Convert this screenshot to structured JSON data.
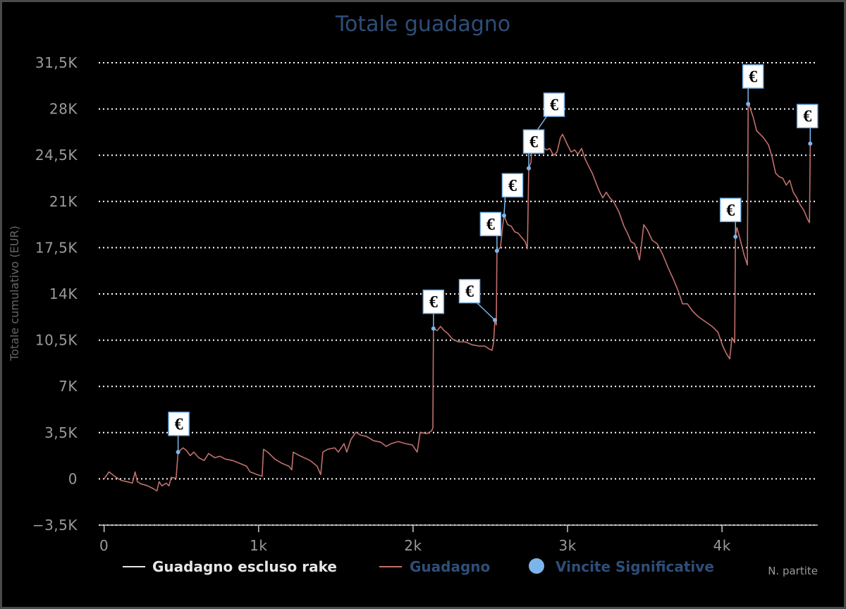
{
  "colors": {
    "background": "#000000",
    "title": "#2e4e79",
    "axis_text": "#9a9a9a",
    "axis_title": "#666666",
    "axis_line": "#c8c8c8",
    "grid": "#ffffff",
    "legend_text": "#2e4e79",
    "legend_text_inactive": "#e6e6e6"
  },
  "chart_data": {
    "type": "line",
    "title": "Totale guadagno",
    "xlabel": "N. partite",
    "ylabel": "Totale cumulativo (EUR)",
    "xlim": [
      -35,
      4620
    ],
    "ylim": [
      -3500,
      31500
    ],
    "grid": true,
    "legend": {
      "position": "bottom"
    },
    "xticks": [
      {
        "value": 0,
        "label": "0"
      },
      {
        "value": 1000,
        "label": "1k"
      },
      {
        "value": 2000,
        "label": "2k"
      },
      {
        "value": 3000,
        "label": "3k"
      },
      {
        "value": 4000,
        "label": "4k"
      }
    ],
    "yticks": [
      {
        "value": 31500,
        "label": "31,5K"
      },
      {
        "value": 28000,
        "label": "28K"
      },
      {
        "value": 24500,
        "label": "24,5K"
      },
      {
        "value": 21000,
        "label": "21K"
      },
      {
        "value": 17500,
        "label": "17,5K"
      },
      {
        "value": 14000,
        "label": "14K"
      },
      {
        "value": 10500,
        "label": "10,5K"
      },
      {
        "value": 7000,
        "label": "7K"
      },
      {
        "value": 3500,
        "label": "3,5K"
      },
      {
        "value": 0,
        "label": "0"
      },
      {
        "value": -3500,
        "label": "−3,5K"
      }
    ],
    "series": [
      {
        "name": "Guadagno escluso rake",
        "color": "#e6e6e6",
        "points": []
      },
      {
        "name": "Guadagno",
        "color": "#c0706c",
        "points": [
          [
            0,
            0
          ],
          [
            32,
            530
          ],
          [
            55,
            320
          ],
          [
            78,
            110
          ],
          [
            110,
            -110
          ],
          [
            146,
            -210
          ],
          [
            183,
            -320
          ],
          [
            201,
            530
          ],
          [
            215,
            -210
          ],
          [
            237,
            -370
          ],
          [
            283,
            -530
          ],
          [
            320,
            -750
          ],
          [
            342,
            -910
          ],
          [
            356,
            -210
          ],
          [
            374,
            -530
          ],
          [
            402,
            -320
          ],
          [
            420,
            -530
          ],
          [
            434,
            110
          ],
          [
            466,
            50
          ],
          [
            479,
            2030
          ],
          [
            511,
            2350
          ],
          [
            534,
            2140
          ],
          [
            557,
            1760
          ],
          [
            580,
            2030
          ],
          [
            612,
            1600
          ],
          [
            648,
            1390
          ],
          [
            676,
            1920
          ],
          [
            717,
            1600
          ],
          [
            749,
            1710
          ],
          [
            785,
            1500
          ],
          [
            831,
            1390
          ],
          [
            877,
            1180
          ],
          [
            922,
            960
          ],
          [
            945,
            530
          ],
          [
            968,
            430
          ],
          [
            991,
            320
          ],
          [
            1023,
            210
          ],
          [
            1032,
            2240
          ],
          [
            1059,
            2030
          ],
          [
            1105,
            1500
          ],
          [
            1151,
            1180
          ],
          [
            1196,
            960
          ],
          [
            1215,
            690
          ],
          [
            1224,
            2030
          ],
          [
            1265,
            1760
          ],
          [
            1333,
            1390
          ],
          [
            1379,
            960
          ],
          [
            1402,
            320
          ],
          [
            1416,
            2030
          ],
          [
            1447,
            2240
          ],
          [
            1493,
            2350
          ],
          [
            1516,
            2030
          ],
          [
            1553,
            2670
          ],
          [
            1571,
            2030
          ],
          [
            1598,
            2990
          ],
          [
            1630,
            3530
          ],
          [
            1662,
            3310
          ],
          [
            1699,
            3210
          ],
          [
            1744,
            2890
          ],
          [
            1790,
            2780
          ],
          [
            1826,
            2460
          ],
          [
            1858,
            2670
          ],
          [
            1904,
            2830
          ],
          [
            1950,
            2670
          ],
          [
            1995,
            2570
          ],
          [
            2027,
            2030
          ],
          [
            2046,
            3530
          ],
          [
            2087,
            3420
          ],
          [
            2119,
            3630
          ],
          [
            2128,
            3850
          ],
          [
            2132,
            11380
          ],
          [
            2155,
            11220
          ],
          [
            2178,
            11540
          ],
          [
            2201,
            11220
          ],
          [
            2224,
            11010
          ],
          [
            2256,
            10580
          ],
          [
            2292,
            10370
          ],
          [
            2338,
            10370
          ],
          [
            2384,
            10150
          ],
          [
            2429,
            10050
          ],
          [
            2466,
            10050
          ],
          [
            2493,
            9830
          ],
          [
            2511,
            9730
          ],
          [
            2521,
            10310
          ],
          [
            2530,
            12020
          ],
          [
            2539,
            11650
          ],
          [
            2543,
            17260
          ],
          [
            2566,
            17530
          ],
          [
            2580,
            19130
          ],
          [
            2589,
            19930
          ],
          [
            2612,
            19240
          ],
          [
            2635,
            19130
          ],
          [
            2658,
            18700
          ],
          [
            2680,
            18600
          ],
          [
            2703,
            18280
          ],
          [
            2726,
            17960
          ],
          [
            2740,
            17420
          ],
          [
            2749,
            23510
          ],
          [
            2763,
            23940
          ],
          [
            2776,
            25920
          ],
          [
            2795,
            25540
          ],
          [
            2817,
            25010
          ],
          [
            2840,
            25120
          ],
          [
            2863,
            24900
          ],
          [
            2886,
            25010
          ],
          [
            2909,
            24480
          ],
          [
            2932,
            24740
          ],
          [
            2954,
            25810
          ],
          [
            2968,
            26080
          ],
          [
            3000,
            25280
          ],
          [
            3023,
            24740
          ],
          [
            3046,
            24900
          ],
          [
            3068,
            24580
          ],
          [
            3091,
            25010
          ],
          [
            3114,
            24210
          ],
          [
            3137,
            23670
          ],
          [
            3160,
            23140
          ],
          [
            3183,
            22440
          ],
          [
            3205,
            21800
          ],
          [
            3228,
            21270
          ],
          [
            3251,
            21700
          ],
          [
            3274,
            21270
          ],
          [
            3297,
            21000
          ],
          [
            3333,
            20200
          ],
          [
            3365,
            19130
          ],
          [
            3388,
            18600
          ],
          [
            3411,
            17960
          ],
          [
            3434,
            17800
          ],
          [
            3457,
            16990
          ],
          [
            3466,
            16570
          ],
          [
            3479,
            17800
          ],
          [
            3493,
            19240
          ],
          [
            3516,
            18860
          ],
          [
            3548,
            18060
          ],
          [
            3580,
            17800
          ],
          [
            3616,
            16990
          ],
          [
            3653,
            15930
          ],
          [
            3685,
            15120
          ],
          [
            3717,
            14220
          ],
          [
            3744,
            13250
          ],
          [
            3776,
            13250
          ],
          [
            3808,
            12720
          ],
          [
            3845,
            12290
          ],
          [
            3890,
            11920
          ],
          [
            3936,
            11540
          ],
          [
            3973,
            11120
          ],
          [
            4005,
            10050
          ],
          [
            4027,
            9510
          ],
          [
            4050,
            9080
          ],
          [
            4064,
            10690
          ],
          [
            4082,
            10310
          ],
          [
            4087,
            18330
          ],
          [
            4096,
            19020
          ],
          [
            4119,
            18060
          ],
          [
            4142,
            16990
          ],
          [
            4164,
            16190
          ],
          [
            4169,
            28380
          ],
          [
            4178,
            28220
          ],
          [
            4201,
            27410
          ],
          [
            4224,
            26350
          ],
          [
            4247,
            26080
          ],
          [
            4269,
            25810
          ],
          [
            4301,
            25280
          ],
          [
            4324,
            24370
          ],
          [
            4347,
            23140
          ],
          [
            4370,
            22870
          ],
          [
            4393,
            22760
          ],
          [
            4416,
            22230
          ],
          [
            4438,
            22600
          ],
          [
            4461,
            21700
          ],
          [
            4484,
            21270
          ],
          [
            4507,
            20730
          ],
          [
            4530,
            20310
          ],
          [
            4553,
            19670
          ],
          [
            4566,
            19400
          ],
          [
            4571,
            25380
          ]
        ]
      }
    ],
    "flags": {
      "name": "Vincite Significative",
      "color": "#7cb5ec",
      "text": "€",
      "points": [
        [
          479,
          2030
        ],
        [
          2132,
          11380
        ],
        [
          2530,
          12020
        ],
        [
          2543,
          17260
        ],
        [
          2589,
          19930
        ],
        [
          2749,
          23510
        ],
        [
          2776,
          25920
        ],
        [
          4087,
          18330
        ],
        [
          4169,
          28380
        ],
        [
          4571,
          25380
        ]
      ]
    }
  }
}
